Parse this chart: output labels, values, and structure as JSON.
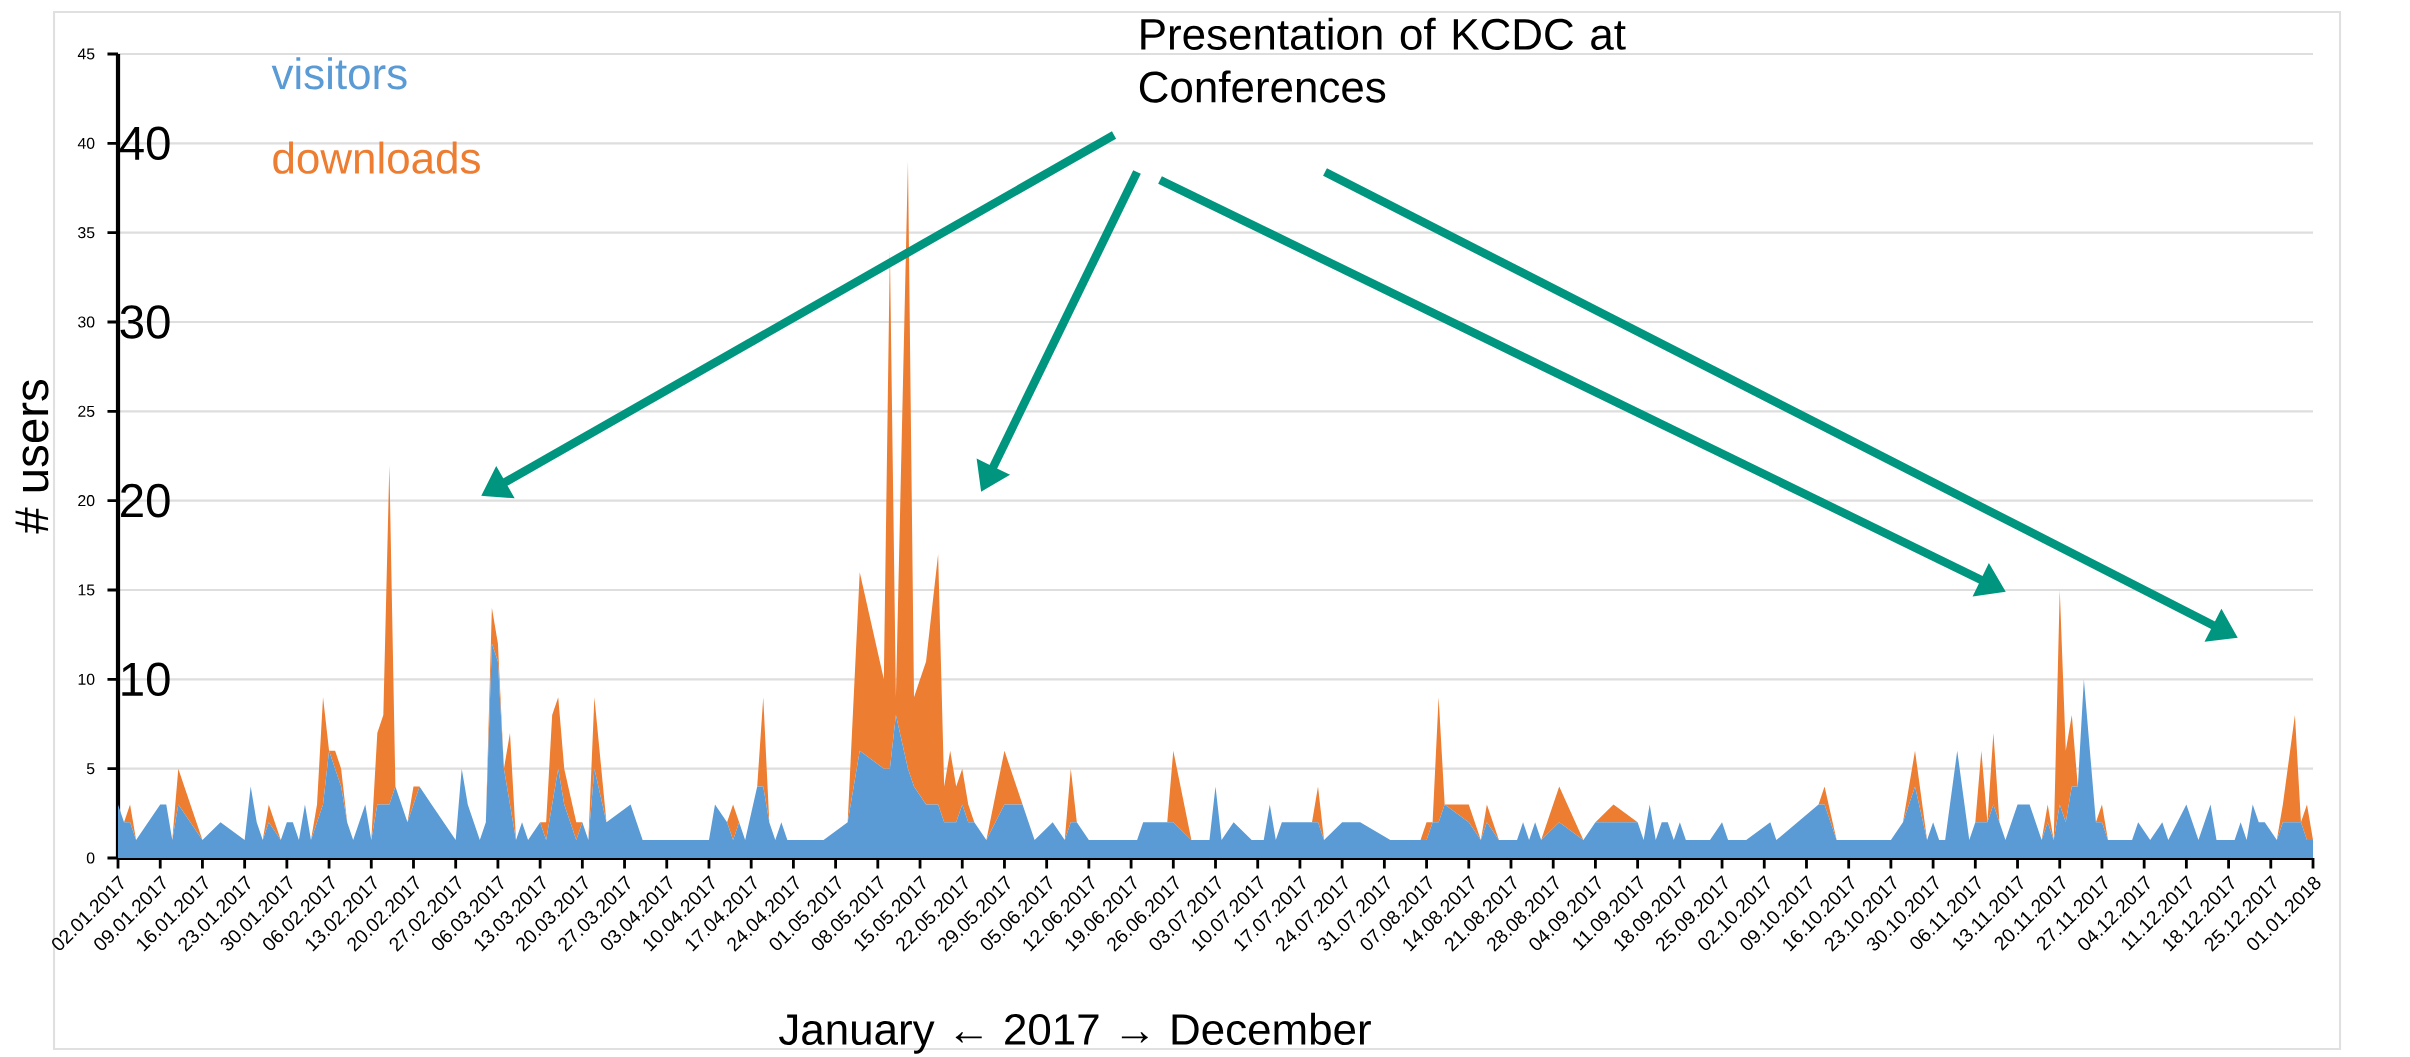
{
  "chart_data": {
    "type": "area",
    "stacked": true,
    "xlabel": "January ← 2017 → December",
    "ylabel": "# users",
    "annotations": [
      "Presentation of KCDC at Conferences",
      "10",
      "20",
      "30",
      "40"
    ],
    "legend": "top left",
    "grid": "y",
    "xlim": [
      "2017-01-02",
      "2018-01-01"
    ],
    "ylim": [
      0,
      45
    ],
    "yticks": [
      0,
      5,
      10,
      15,
      20,
      25,
      30,
      35,
      40,
      45
    ],
    "xticks": [
      {
        "value": "2017-01-02",
        "label": "02.01.2017"
      },
      {
        "value": "2017-01-09",
        "label": "09.01.2017"
      },
      {
        "value": "2017-01-16",
        "label": "16.01.2017"
      },
      {
        "value": "2017-01-23",
        "label": "23.01.2017"
      },
      {
        "value": "2017-01-30",
        "label": "30.01.2017"
      },
      {
        "value": "2017-02-06",
        "label": "06.02.2017"
      },
      {
        "value": "2017-02-13",
        "label": "13.02.2017"
      },
      {
        "value": "2017-02-20",
        "label": "20.02.2017"
      },
      {
        "value": "2017-02-27",
        "label": "27.02.2017"
      },
      {
        "value": "2017-03-06",
        "label": "06.03.2017"
      },
      {
        "value": "2017-03-13",
        "label": "13.03.2017"
      },
      {
        "value": "2017-03-20",
        "label": "20.03.2017"
      },
      {
        "value": "2017-03-27",
        "label": "27.03.2017"
      },
      {
        "value": "2017-04-03",
        "label": "03.04.2017"
      },
      {
        "value": "2017-04-10",
        "label": "10.04.2017"
      },
      {
        "value": "2017-04-17",
        "label": "17.04.2017"
      },
      {
        "value": "2017-04-24",
        "label": "24.04.2017"
      },
      {
        "value": "2017-05-01",
        "label": "01.05.2017"
      },
      {
        "value": "2017-05-08",
        "label": "08.05.2017"
      },
      {
        "value": "2017-05-15",
        "label": "15.05.2017"
      },
      {
        "value": "2017-05-22",
        "label": "22.05.2017"
      },
      {
        "value": "2017-05-29",
        "label": "29.05.2017"
      },
      {
        "value": "2017-06-05",
        "label": "05.06.2017"
      },
      {
        "value": "2017-06-12",
        "label": "12.06.2017"
      },
      {
        "value": "2017-06-19",
        "label": "19.06.2017"
      },
      {
        "value": "2017-06-26",
        "label": "26.06.2017"
      },
      {
        "value": "2017-07-03",
        "label": "03.07.2017"
      },
      {
        "value": "2017-07-10",
        "label": "10.07.2017"
      },
      {
        "value": "2017-07-17",
        "label": "17.07.2017"
      },
      {
        "value": "2017-07-24",
        "label": "24.07.2017"
      },
      {
        "value": "2017-07-31",
        "label": "31.07.2017"
      },
      {
        "value": "2017-08-07",
        "label": "07.08.2017"
      },
      {
        "value": "2017-08-14",
        "label": "14.08.2017"
      },
      {
        "value": "2017-08-21",
        "label": "21.08.2017"
      },
      {
        "value": "2017-08-28",
        "label": "28.08.2017"
      },
      {
        "value": "2017-09-04",
        "label": "04.09.2017"
      },
      {
        "value": "2017-09-11",
        "label": "11.09.2017"
      },
      {
        "value": "2017-09-18",
        "label": "18.09.2017"
      },
      {
        "value": "2017-09-25",
        "label": "25.09.2017"
      },
      {
        "value": "2017-10-02",
        "label": "02.10.2017"
      },
      {
        "value": "2017-10-09",
        "label": "09.10.2017"
      },
      {
        "value": "2017-10-16",
        "label": "16.10.2017"
      },
      {
        "value": "2017-10-23",
        "label": "23.10.2017"
      },
      {
        "value": "2017-10-30",
        "label": "30.10.2017"
      },
      {
        "value": "2017-11-06",
        "label": "06.11.2017"
      },
      {
        "value": "2017-11-13",
        "label": "13.11.2017"
      },
      {
        "value": "2017-11-20",
        "label": "20.11.2017"
      },
      {
        "value": "2017-11-27",
        "label": "27.11.2017"
      },
      {
        "value": "2017-12-04",
        "label": "04.12.2017"
      },
      {
        "value": "2017-12-11",
        "label": "11.12.2017"
      },
      {
        "value": "2017-12-18",
        "label": "18.12.2017"
      },
      {
        "value": "2017-12-25",
        "label": "25.12.2017"
      },
      {
        "value": "2018-01-01",
        "label": "01.01.2018"
      }
    ],
    "x": [
      "2017-01-02",
      "2017-01-03",
      "2017-01-04",
      "2017-01-05",
      "2017-01-09",
      "2017-01-10",
      "2017-01-11",
      "2017-01-12",
      "2017-01-16",
      "2017-01-19",
      "2017-01-23",
      "2017-01-24",
      "2017-01-25",
      "2017-01-26",
      "2017-01-27",
      "2017-01-29",
      "2017-01-30",
      "2017-01-31",
      "2017-02-01",
      "2017-02-02",
      "2017-02-03",
      "2017-02-04",
      "2017-02-05",
      "2017-02-06",
      "2017-02-07",
      "2017-02-08",
      "2017-02-09",
      "2017-02-10",
      "2017-02-12",
      "2017-02-13",
      "2017-02-14",
      "2017-02-15",
      "2017-02-16",
      "2017-02-17",
      "2017-02-19",
      "2017-02-20",
      "2017-02-21",
      "2017-02-23",
      "2017-02-27",
      "2017-02-28",
      "2017-03-01",
      "2017-03-03",
      "2017-03-04",
      "2017-03-05",
      "2017-03-06",
      "2017-03-07",
      "2017-03-08",
      "2017-03-09",
      "2017-03-10",
      "2017-03-11",
      "2017-03-13",
      "2017-03-14",
      "2017-03-15",
      "2017-03-16",
      "2017-03-17",
      "2017-03-19",
      "2017-03-20",
      "2017-03-21",
      "2017-03-22",
      "2017-03-24",
      "2017-03-28",
      "2017-03-30",
      "2017-04-10",
      "2017-04-11",
      "2017-04-13",
      "2017-04-14",
      "2017-04-15",
      "2017-04-16",
      "2017-04-18",
      "2017-04-19",
      "2017-04-20",
      "2017-04-21",
      "2017-04-22",
      "2017-04-23",
      "2017-04-29",
      "2017-05-03",
      "2017-05-05",
      "2017-05-09",
      "2017-05-10",
      "2017-05-11",
      "2017-05-13",
      "2017-05-14",
      "2017-05-16",
      "2017-05-18",
      "2017-05-19",
      "2017-05-20",
      "2017-05-21",
      "2017-05-22",
      "2017-05-23",
      "2017-05-24",
      "2017-05-26",
      "2017-05-29",
      "2017-06-01",
      "2017-06-03",
      "2017-06-06",
      "2017-06-08",
      "2017-06-09",
      "2017-06-10",
      "2017-06-12",
      "2017-06-20",
      "2017-06-21",
      "2017-06-25",
      "2017-06-26",
      "2017-06-29",
      "2017-07-02",
      "2017-07-03",
      "2017-07-04",
      "2017-07-06",
      "2017-07-09",
      "2017-07-11",
      "2017-07-12",
      "2017-07-13",
      "2017-07-14",
      "2017-07-19",
      "2017-07-20",
      "2017-07-21",
      "2017-07-24",
      "2017-07-27",
      "2017-08-01",
      "2017-08-06",
      "2017-08-07",
      "2017-08-08",
      "2017-08-09",
      "2017-08-10",
      "2017-08-14",
      "2017-08-16",
      "2017-08-17",
      "2017-08-19",
      "2017-08-22",
      "2017-08-23",
      "2017-08-24",
      "2017-08-25",
      "2017-08-26",
      "2017-08-29",
      "2017-09-02",
      "2017-09-04",
      "2017-09-07",
      "2017-09-11",
      "2017-09-12",
      "2017-09-13",
      "2017-09-14",
      "2017-09-15",
      "2017-09-16",
      "2017-09-17",
      "2017-09-18",
      "2017-09-19",
      "2017-09-23",
      "2017-09-25",
      "2017-09-26",
      "2017-09-29",
      "2017-10-03",
      "2017-10-04",
      "2017-10-11",
      "2017-10-12",
      "2017-10-14",
      "2017-10-23",
      "2017-10-25",
      "2017-10-27",
      "2017-10-29",
      "2017-10-30",
      "2017-10-31",
      "2017-11-01",
      "2017-11-03",
      "2017-11-05",
      "2017-11-06",
      "2017-11-07",
      "2017-11-08",
      "2017-11-09",
      "2017-11-10",
      "2017-11-11",
      "2017-11-13",
      "2017-11-15",
      "2017-11-17",
      "2017-11-18",
      "2017-11-19",
      "2017-11-20",
      "2017-11-21",
      "2017-11-22",
      "2017-11-23",
      "2017-11-24",
      "2017-11-26",
      "2017-11-27",
      "2017-11-28",
      "2017-12-02",
      "2017-12-03",
      "2017-12-05",
      "2017-12-07",
      "2017-12-08",
      "2017-12-11",
      "2017-12-13",
      "2017-12-15",
      "2017-12-16",
      "2017-12-19",
      "2017-12-20",
      "2017-12-21",
      "2017-12-22",
      "2017-12-23",
      "2017-12-24",
      "2017-12-26",
      "2017-12-27",
      "2017-12-29",
      "2017-12-30",
      "2017-12-31",
      "2018-01-01"
    ],
    "series": [
      {
        "name": "visitors",
        "color": "#5b9bd5",
        "values": [
          3,
          2,
          2,
          1,
          3,
          3,
          1,
          3,
          1,
          2,
          1,
          4,
          2,
          1,
          2,
          1,
          2,
          2,
          1,
          3,
          1,
          2,
          3,
          6,
          5,
          4,
          2,
          1,
          3,
          1,
          3,
          3,
          3,
          4,
          2,
          3,
          4,
          3,
          1,
          5,
          3,
          1,
          2,
          12,
          11,
          5,
          3,
          1,
          2,
          1,
          2,
          1,
          3,
          5,
          3,
          1,
          2,
          1,
          5,
          2,
          3,
          1,
          1,
          3,
          2,
          1,
          2,
          1,
          4,
          4,
          2,
          1,
          2,
          1,
          1,
          2,
          6,
          5,
          5,
          8,
          5,
          4,
          3,
          3,
          2,
          2,
          2,
          3,
          2,
          2,
          1,
          3,
          3,
          1,
          2,
          1,
          2,
          2,
          1,
          1,
          2,
          2,
          2,
          1,
          1,
          4,
          1,
          2,
          1,
          1,
          3,
          1,
          2,
          2,
          2,
          1,
          2,
          2,
          1,
          1,
          1,
          2,
          2,
          3,
          2,
          1,
          2,
          1,
          1,
          2,
          1,
          2,
          1,
          2,
          1,
          2,
          2,
          2,
          1,
          3,
          1,
          2,
          2,
          1,
          2,
          1,
          1,
          2,
          1,
          1,
          2,
          1,
          3,
          3,
          1,
          1,
          2,
          4,
          1,
          2,
          1,
          1,
          6,
          1,
          2,
          2,
          2,
          3,
          2,
          1,
          3,
          3,
          1,
          2,
          1,
          3,
          2,
          4,
          4,
          10,
          2,
          2,
          1,
          1,
          2,
          1,
          2,
          1,
          3,
          1,
          3,
          1,
          1,
          2,
          1,
          3,
          2,
          2,
          1,
          2,
          2,
          2,
          1,
          1
        ]
      },
      {
        "name": "downloads",
        "color": "#ed7d31",
        "values": [
          0,
          0,
          1,
          0,
          0,
          0,
          0,
          2,
          0,
          0,
          0,
          0,
          0,
          0,
          1,
          0,
          0,
          0,
          0,
          0,
          0,
          1,
          6,
          0,
          1,
          1,
          0,
          0,
          0,
          0,
          4,
          5,
          19,
          0,
          0,
          1,
          0,
          0,
          0,
          0,
          0,
          0,
          0,
          2,
          1,
          0,
          4,
          0,
          0,
          0,
          0,
          1,
          5,
          4,
          2,
          1,
          0,
          0,
          4,
          0,
          0,
          0,
          0,
          0,
          0,
          2,
          0,
          0,
          0,
          5,
          0,
          0,
          0,
          0,
          0,
          0,
          10,
          5,
          29,
          1,
          34,
          5,
          8,
          14,
          2,
          4,
          2,
          2,
          1,
          0,
          0,
          3,
          0,
          0,
          0,
          0,
          3,
          0,
          0,
          0,
          0,
          0,
          4,
          0,
          0,
          0,
          0,
          0,
          0,
          0,
          0,
          0,
          0,
          0,
          2,
          0,
          0,
          0,
          0,
          0,
          1,
          0,
          7,
          0,
          1,
          0,
          1,
          0,
          0,
          0,
          0,
          0,
          0,
          2,
          0,
          0,
          1,
          0,
          0,
          0,
          0,
          0,
          0,
          0,
          0,
          0,
          0,
          0,
          0,
          0,
          0,
          0,
          0,
          1,
          0,
          0,
          0,
          2,
          0,
          0,
          0,
          0,
          0,
          0,
          0,
          4,
          0,
          4,
          0,
          0,
          0,
          0,
          0,
          1,
          0,
          12,
          4,
          4,
          0,
          0,
          0,
          1,
          0,
          0,
          0,
          0,
          0,
          0,
          0,
          0,
          0,
          0,
          0,
          0,
          0,
          0,
          0,
          0,
          0,
          1,
          6,
          0,
          2,
          0
        ]
      }
    ]
  }
}
